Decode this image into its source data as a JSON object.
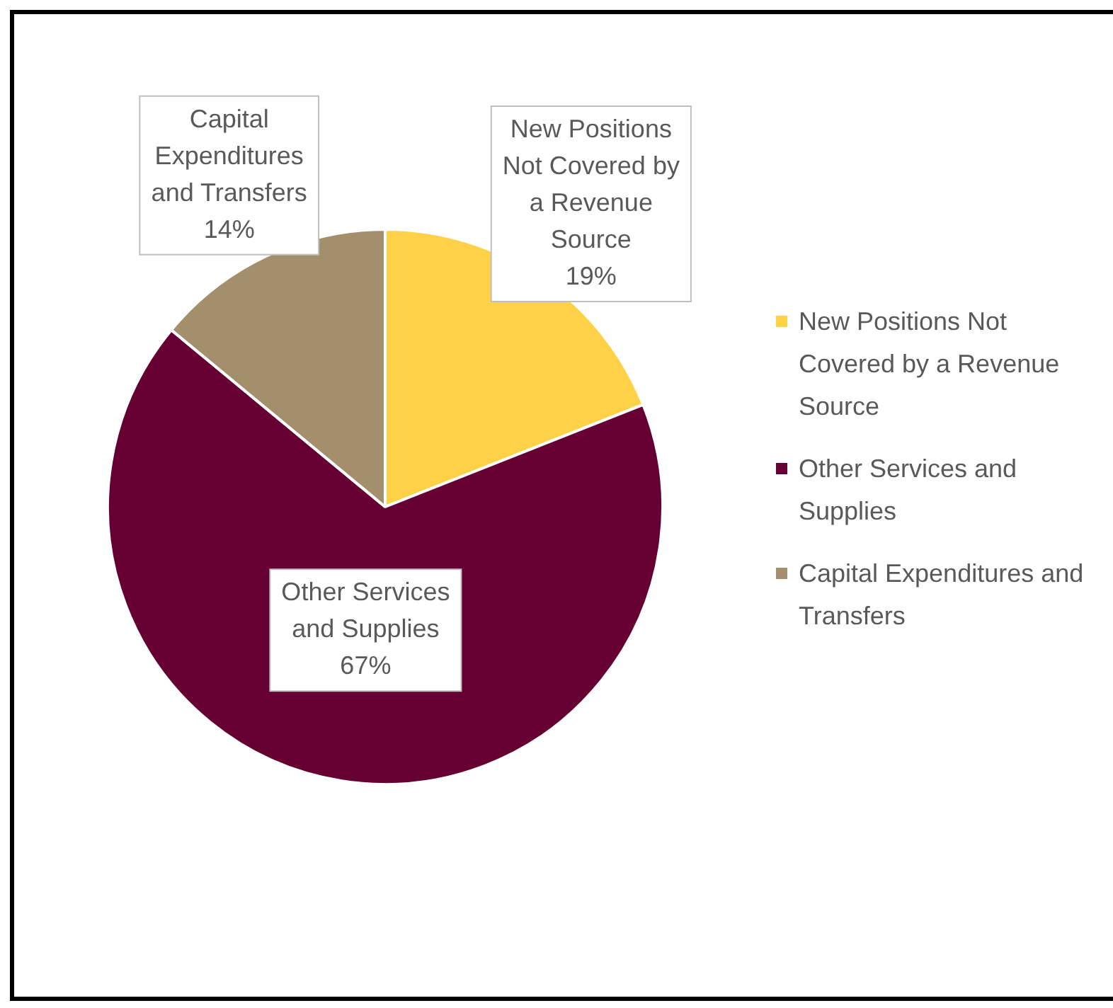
{
  "chart_data": {
    "type": "pie",
    "categories": [
      "New Positions Not Covered by a Revenue Source",
      "Other Services and Supplies",
      "Capital Expenditures and Transfers"
    ],
    "values": [
      19,
      67,
      14
    ],
    "colors": [
      "#ffd147",
      "#660033",
      "#a38f6c"
    ],
    "value_labels": [
      "19%",
      "67%",
      "14%"
    ],
    "legend": "right"
  }
}
